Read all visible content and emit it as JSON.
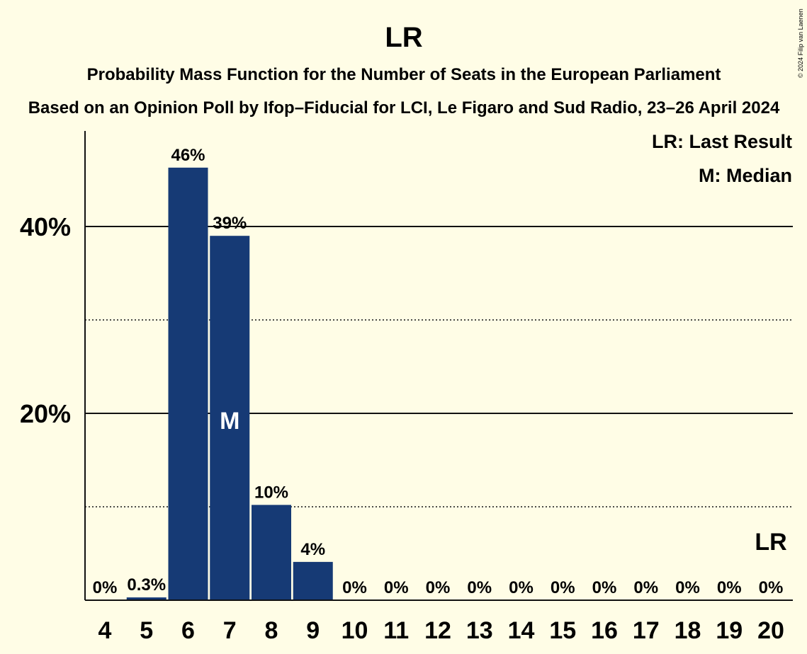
{
  "copyright": "© 2024 Filip van Laenen",
  "chart_data": {
    "type": "bar",
    "title": "LR",
    "subtitle": "Probability Mass Function for the Number of Seats in the European Parliament",
    "subtitle2": "Based on an Opinion Poll by Ifop–Fiducial for LCI, Le Figaro and Sud Radio, 23–26 April 2024",
    "categories": [
      "4",
      "5",
      "6",
      "7",
      "8",
      "9",
      "10",
      "11",
      "12",
      "13",
      "14",
      "15",
      "16",
      "17",
      "18",
      "19",
      "20"
    ],
    "values": [
      0,
      0.3,
      46.3,
      39.0,
      10.2,
      4.1,
      0,
      0,
      0,
      0,
      0,
      0,
      0,
      0,
      0,
      0,
      0
    ],
    "data_labels": [
      "0%",
      "0.3%",
      "46%",
      "39%",
      "10%",
      "4%",
      "0%",
      "0%",
      "0%",
      "0%",
      "0%",
      "0%",
      "0%",
      "0%",
      "0%",
      "0%",
      "0%"
    ],
    "ylim": [
      0,
      50
    ],
    "yticks": [
      {
        "value": 20,
        "label": "20%"
      },
      {
        "value": 40,
        "label": "40%"
      }
    ],
    "minor_gridlines": [
      10,
      30
    ],
    "median_seat": "7",
    "median_marker": "M",
    "last_result_seat": "20",
    "last_result_marker": "LR",
    "legend": [
      "LR: Last Result",
      "M: Median"
    ],
    "legend_position": "top-right",
    "bar_color": "#163a75",
    "grid": true
  }
}
